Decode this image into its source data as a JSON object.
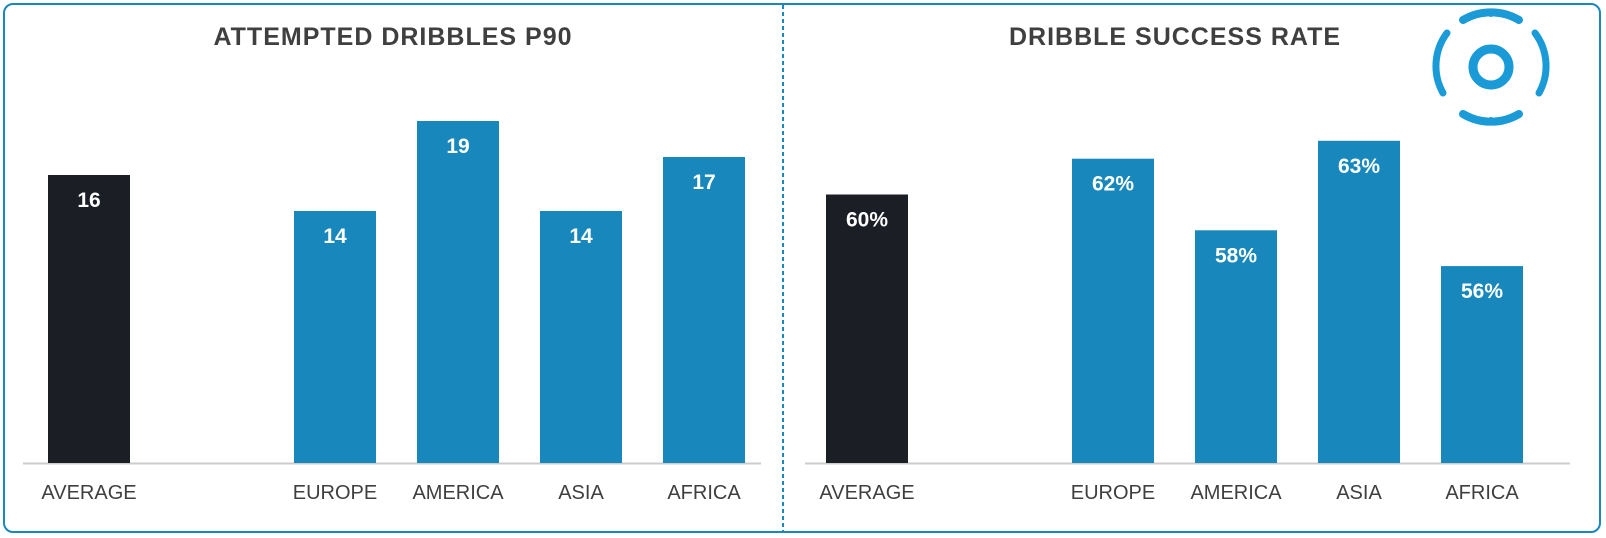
{
  "colors": {
    "average": "#1c1e26",
    "region": "#1787bc",
    "border": "#1a87bd",
    "axis": "#cccccc",
    "text": "#3f3f3f"
  },
  "logo": {
    "icon": "football-logo-icon"
  },
  "chart_data": [
    {
      "type": "bar",
      "title": "ATTEMPTED DRIBBLES P90",
      "categories": [
        "AVERAGE",
        "EUROPE",
        "AMERICA",
        "ASIA",
        "AFRICA"
      ],
      "values": [
        16,
        14,
        19,
        14,
        17
      ],
      "value_labels": [
        "16",
        "14",
        "19",
        "14",
        "17"
      ],
      "highlight": [
        "average",
        "region",
        "region",
        "region",
        "region"
      ],
      "ylim": [
        0,
        20
      ],
      "grid": false,
      "legend": "none"
    },
    {
      "type": "bar",
      "title": "DRIBBLE SUCCESS RATE",
      "categories": [
        "AVERAGE",
        "EUROPE",
        "AMERICA",
        "ASIA",
        "AFRICA"
      ],
      "values": [
        60,
        62,
        58,
        63,
        56
      ],
      "value_labels": [
        "60%",
        "62%",
        "58%",
        "63%",
        "56%"
      ],
      "highlight": [
        "average",
        "region",
        "region",
        "region",
        "region"
      ],
      "ylim": [
        45,
        65
      ],
      "grid": false,
      "legend": "none"
    }
  ]
}
